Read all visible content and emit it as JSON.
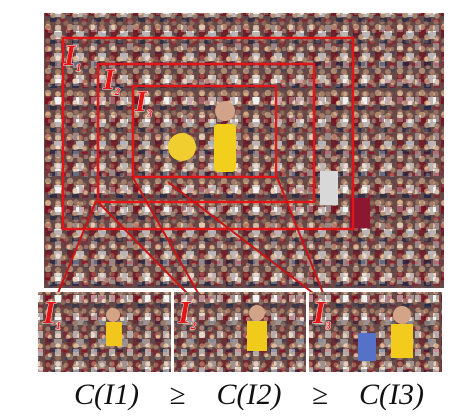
{
  "figure": {
    "main_image_alt": "stadium crowd photo",
    "crops": [
      {
        "label": "I",
        "sub": "1"
      },
      {
        "label": "I",
        "sub": "2"
      },
      {
        "label": "I",
        "sub": "3"
      }
    ],
    "boxes": [
      {
        "label": "I",
        "sub": "1"
      },
      {
        "label": "I",
        "sub": "2"
      },
      {
        "label": "I",
        "sub": "3"
      }
    ],
    "formula": {
      "term1": "C(I1)",
      "op1": "≥",
      "term2": "C(I2)",
      "op2": "≥",
      "term3": "C(I3)"
    },
    "colors": {
      "box": "#e21616",
      "link": "#c81414",
      "background": "#ffffff"
    }
  }
}
